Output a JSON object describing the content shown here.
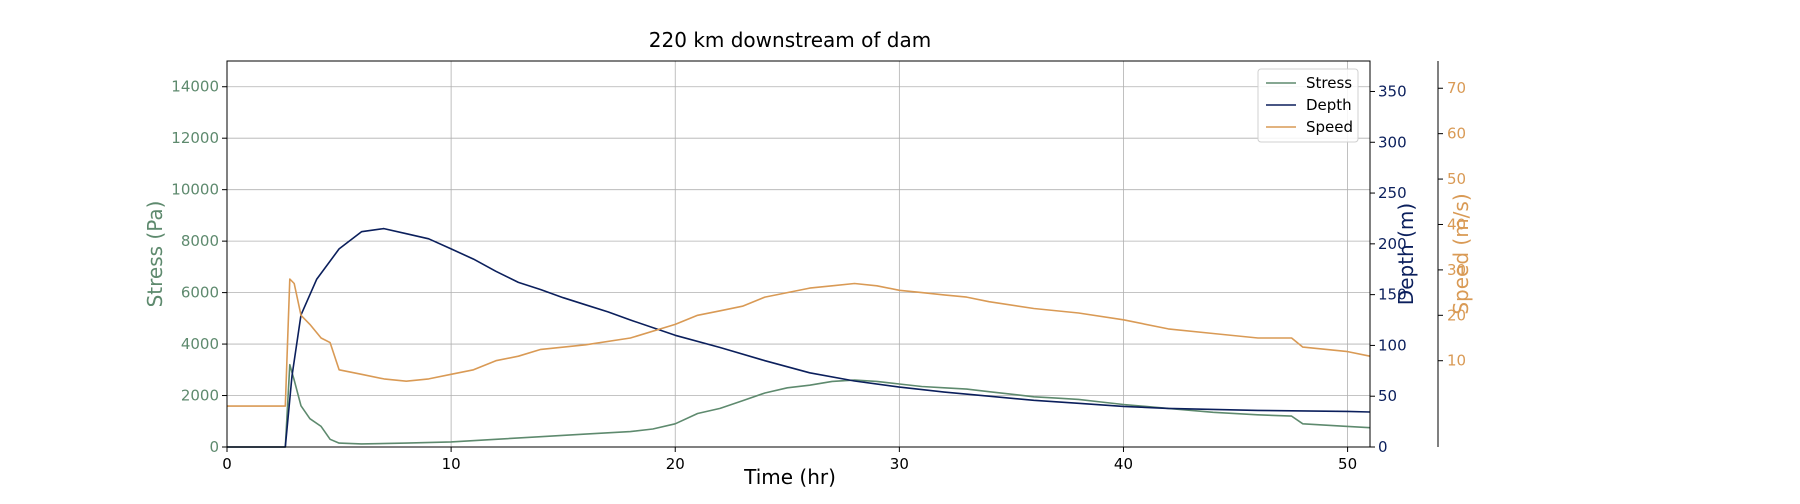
{
  "chart_data": {
    "type": "line",
    "title": "220 km downstream of dam",
    "xlabel": "Time (hr)",
    "xlim": [
      0,
      51
    ],
    "x_ticks": [
      "0",
      "10",
      "20",
      "30",
      "40",
      "50"
    ],
    "grid": true,
    "legend_position": "top-right",
    "axes": {
      "stress": {
        "label": "Stress (Pa)",
        "color": "#5e8a6e",
        "ylim": [
          0,
          15000
        ],
        "ticks": [
          "0",
          "2000",
          "4000",
          "6000",
          "8000",
          "10000",
          "12000",
          "14000"
        ]
      },
      "depth": {
        "label": "Depth (m)",
        "color": "#0b1f5c",
        "ylim": [
          0,
          380
        ],
        "ticks": [
          "0",
          "50",
          "100",
          "150",
          "200",
          "250",
          "300",
          "350"
        ]
      },
      "speed": {
        "label": "Speed (m/s)",
        "color": "#d99a55",
        "ylim": [
          -9,
          76
        ],
        "ticks": [
          "10",
          "20",
          "30",
          "40",
          "50",
          "60",
          "70"
        ]
      }
    },
    "series": [
      {
        "name": "Stress",
        "axis": "stress",
        "color": "#5e8a6e",
        "x": [
          0,
          2.6,
          2.8,
          3.0,
          3.3,
          3.7,
          4.2,
          4.6,
          5.0,
          6,
          8,
          10,
          12,
          14,
          16,
          18,
          19,
          20,
          21,
          22,
          23,
          24,
          25,
          26,
          27,
          28,
          29,
          30,
          31,
          32,
          33,
          34,
          35,
          36,
          37,
          38,
          39,
          40,
          42,
          44,
          46,
          47.5,
          48,
          50,
          51
        ],
        "y": [
          0,
          0,
          3200,
          2600,
          1600,
          1100,
          800,
          300,
          150,
          120,
          150,
          200,
          300,
          400,
          500,
          600,
          700,
          900,
          1300,
          1500,
          1800,
          2100,
          2300,
          2400,
          2550,
          2600,
          2550,
          2450,
          2350,
          2300,
          2250,
          2150,
          2050,
          1950,
          1900,
          1850,
          1750,
          1650,
          1500,
          1350,
          1250,
          1200,
          900,
          800,
          750
        ]
      },
      {
        "name": "Depth",
        "axis": "depth",
        "color": "#0b1f5c",
        "x": [
          0,
          2.6,
          2.9,
          3.3,
          4,
          5,
          6,
          7,
          8,
          9,
          10,
          11,
          12,
          13,
          14,
          15,
          16,
          17,
          18,
          20,
          22,
          24,
          26,
          28,
          30,
          32,
          34,
          36,
          38,
          40,
          42,
          44,
          46,
          48,
          50,
          51
        ],
        "y": [
          0,
          0,
          70,
          130,
          165,
          195,
          212,
          215,
          210,
          205,
          195,
          185,
          173,
          162,
          155,
          147,
          140,
          133,
          125,
          110,
          98,
          85,
          73,
          65,
          59,
          54,
          50,
          46,
          43,
          40,
          38,
          37,
          36,
          35.5,
          35,
          34.5
        ]
      },
      {
        "name": "Speed",
        "axis": "speed",
        "color": "#d99a55",
        "x": [
          0,
          2.6,
          2.8,
          3.0,
          3.3,
          3.7,
          4.2,
          4.6,
          5,
          6,
          7,
          8,
          9,
          10,
          11,
          12,
          13,
          14,
          16,
          18,
          20,
          21,
          22,
          23,
          24,
          25,
          26,
          27,
          28,
          29,
          30,
          31,
          32,
          33,
          34,
          36,
          38,
          40,
          42,
          44,
          46,
          47.5,
          48,
          50,
          51
        ],
        "y": [
          0,
          0,
          28,
          27,
          20,
          18,
          15,
          14,
          8,
          7,
          6,
          5.5,
          6,
          7,
          8,
          10,
          11,
          12.5,
          13.5,
          15,
          18,
          20,
          21,
          22,
          24,
          25,
          26,
          26.5,
          27,
          26.5,
          25.5,
          25,
          24.5,
          24,
          23,
          21.5,
          20.5,
          19,
          17,
          16,
          15,
          15,
          13,
          12,
          11
        ]
      }
    ]
  }
}
